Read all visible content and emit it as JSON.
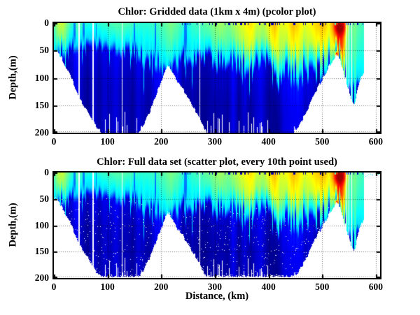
{
  "figure": {
    "background": "#ffffff",
    "axis_color": "#000000",
    "text_color": "#000000",
    "nodata_color": "#ffffff"
  },
  "chart_data": {
    "type": "heatmap",
    "description": "Two stacked ocean-section plots of chlorophyll vs distance and depth, jet colormap, white = no data / seafloor",
    "panels": [
      {
        "title": "Chlor: Gridded data (1km x 4m) (pcolor plot)",
        "style": "pcolor"
      },
      {
        "title": "Chlor: Full data set (scatter plot, every 10th point used)",
        "style": "scatter"
      }
    ],
    "xlabel": "Distance, (km)",
    "ylabel": "Depth,(m)",
    "xlim": [
      0,
      608
    ],
    "ylim": [
      0,
      200
    ],
    "y_reversed": true,
    "xticks": [
      0,
      100,
      200,
      300,
      400,
      500,
      600
    ],
    "yticks": [
      0,
      50,
      100,
      150,
      200
    ],
    "grid": "dotted",
    "colormap": "jet",
    "jet_stops": [
      [
        0.0,
        "#000080"
      ],
      [
        0.125,
        "#0000ff"
      ],
      [
        0.375,
        "#00ffff"
      ],
      [
        0.625,
        "#ffff00"
      ],
      [
        0.875,
        "#ff0000"
      ],
      [
        1.0,
        "#800000"
      ]
    ],
    "data_extent_km": 578,
    "bathymetry_km_depth": [
      [
        0,
        48
      ],
      [
        12,
        60
      ],
      [
        30,
        95
      ],
      [
        50,
        140
      ],
      [
        70,
        175
      ],
      [
        88,
        200
      ],
      [
        158,
        200
      ],
      [
        180,
        160
      ],
      [
        198,
        112
      ],
      [
        212,
        76
      ],
      [
        228,
        102
      ],
      [
        252,
        138
      ],
      [
        285,
        200
      ],
      [
        448,
        200
      ],
      [
        468,
        168
      ],
      [
        486,
        128
      ],
      [
        505,
        94
      ],
      [
        518,
        70
      ],
      [
        529,
        56
      ],
      [
        538,
        82
      ],
      [
        548,
        118
      ],
      [
        556,
        146
      ],
      [
        560,
        152
      ],
      [
        566,
        122
      ],
      [
        572,
        100
      ],
      [
        578,
        88
      ]
    ],
    "surface_chlorophyll_km_level": [
      [
        0,
        0.46
      ],
      [
        8,
        0.56
      ],
      [
        16,
        0.58
      ],
      [
        24,
        0.5
      ],
      [
        34,
        0.42
      ],
      [
        44,
        0.46
      ],
      [
        58,
        0.42
      ],
      [
        70,
        0.4
      ],
      [
        85,
        0.42
      ],
      [
        100,
        0.44
      ],
      [
        115,
        0.46
      ],
      [
        130,
        0.46
      ],
      [
        145,
        0.44
      ],
      [
        160,
        0.42
      ],
      [
        175,
        0.42
      ],
      [
        190,
        0.44
      ],
      [
        205,
        0.46
      ],
      [
        218,
        0.5
      ],
      [
        232,
        0.46
      ],
      [
        248,
        0.4
      ],
      [
        262,
        0.44
      ],
      [
        278,
        0.46
      ],
      [
        295,
        0.5
      ],
      [
        310,
        0.54
      ],
      [
        325,
        0.5
      ],
      [
        340,
        0.56
      ],
      [
        355,
        0.62
      ],
      [
        368,
        0.66
      ],
      [
        378,
        0.58
      ],
      [
        392,
        0.56
      ],
      [
        404,
        0.66
      ],
      [
        412,
        0.7
      ],
      [
        422,
        0.6
      ],
      [
        434,
        0.62
      ],
      [
        446,
        0.7
      ],
      [
        456,
        0.66
      ],
      [
        468,
        0.6
      ],
      [
        480,
        0.64
      ],
      [
        492,
        0.68
      ],
      [
        502,
        0.7
      ],
      [
        512,
        0.64
      ],
      [
        520,
        0.7
      ],
      [
        527,
        0.82
      ],
      [
        533,
        0.97
      ],
      [
        540,
        0.8
      ],
      [
        546,
        0.55
      ],
      [
        552,
        0.46
      ],
      [
        560,
        0.5
      ],
      [
        568,
        0.46
      ],
      [
        578,
        0.44
      ]
    ],
    "mixed_layer_depth_km_m": [
      [
        0,
        52
      ],
      [
        20,
        44
      ],
      [
        40,
        32
      ],
      [
        60,
        30
      ],
      [
        80,
        30
      ],
      [
        100,
        36
      ],
      [
        120,
        42
      ],
      [
        140,
        40
      ],
      [
        160,
        50
      ],
      [
        180,
        62
      ],
      [
        200,
        72
      ],
      [
        212,
        78
      ],
      [
        225,
        62
      ],
      [
        240,
        52
      ],
      [
        260,
        56
      ],
      [
        280,
        52
      ],
      [
        300,
        62
      ],
      [
        320,
        56
      ],
      [
        340,
        66
      ],
      [
        360,
        72
      ],
      [
        380,
        62
      ],
      [
        400,
        58
      ],
      [
        418,
        88
      ],
      [
        432,
        66
      ],
      [
        448,
        92
      ],
      [
        462,
        80
      ],
      [
        476,
        72
      ],
      [
        490,
        76
      ],
      [
        502,
        72
      ],
      [
        512,
        66
      ],
      [
        522,
        60
      ],
      [
        530,
        52
      ],
      [
        538,
        78
      ],
      [
        548,
        108
      ],
      [
        558,
        145
      ],
      [
        566,
        112
      ],
      [
        578,
        88
      ]
    ],
    "missing_cast_gaps_km_width": [
      [
        30,
        1.2
      ],
      [
        47,
        1.4
      ],
      [
        73,
        2.6
      ],
      [
        127,
        1.8
      ],
      [
        272,
        1.4
      ],
      [
        539,
        1.0
      ],
      [
        545,
        1.0
      ],
      [
        550,
        1.0
      ],
      [
        555,
        1.0
      ]
    ],
    "low_chl_surface_streaks_km": [
      [
        34,
        41
      ],
      [
        54,
        60
      ],
      [
        74,
        79
      ],
      [
        95,
        100
      ],
      [
        148,
        152
      ],
      [
        186,
        191
      ],
      [
        243,
        248
      ]
    ],
    "hotspots_km_depth_rx_ry_level": [
      [
        533,
        8,
        9,
        13,
        0.97
      ],
      [
        527,
        57,
        2.5,
        5,
        0.85
      ]
    ],
    "noise_seed": 20
  }
}
